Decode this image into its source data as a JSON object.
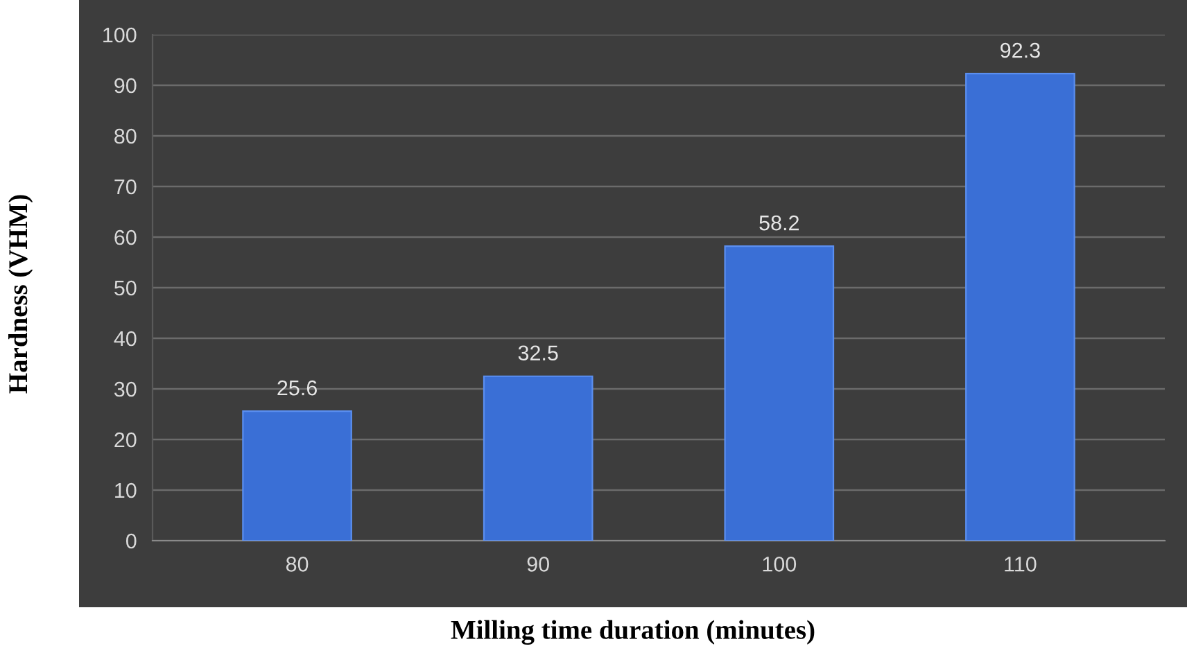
{
  "chart_data": {
    "type": "bar",
    "xlabel": "Milling time duration (minutes)",
    "ylabel": "Hardness (VHM)",
    "categories": [
      "80",
      "90",
      "100",
      "110"
    ],
    "values": [
      25.6,
      32.5,
      58.2,
      92.3
    ],
    "color": "#3a6fd6",
    "ylim": [
      0,
      100
    ],
    "yticks": [
      0,
      10,
      20,
      30,
      40,
      50,
      60,
      70,
      80,
      90,
      100
    ],
    "grid": "y",
    "data_labels": true
  }
}
